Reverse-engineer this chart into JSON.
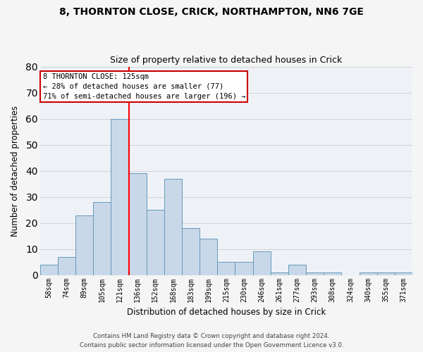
{
  "title1": "8, THORNTON CLOSE, CRICK, NORTHAMPTON, NN6 7GE",
  "title2": "Size of property relative to detached houses in Crick",
  "xlabel": "Distribution of detached houses by size in Crick",
  "ylabel": "Number of detached properties",
  "footer1": "Contains HM Land Registry data © Crown copyright and database right 2024.",
  "footer2": "Contains public sector information licensed under the Open Government Licence v3.0.",
  "categories": [
    "58sqm",
    "74sqm",
    "89sqm",
    "105sqm",
    "121sqm",
    "136sqm",
    "152sqm",
    "168sqm",
    "183sqm",
    "199sqm",
    "215sqm",
    "230sqm",
    "246sqm",
    "261sqm",
    "277sqm",
    "293sqm",
    "308sqm",
    "324sqm",
    "340sqm",
    "355sqm",
    "371sqm"
  ],
  "values": [
    4,
    7,
    23,
    28,
    60,
    39,
    25,
    37,
    18,
    14,
    5,
    5,
    9,
    1,
    4,
    1,
    1,
    0,
    1,
    1,
    1
  ],
  "bar_color": "#c8d8e8",
  "bar_edge_color": "#6699bb",
  "red_line_bar_index": 4,
  "annotation_text1": "8 THORNTON CLOSE: 125sqm",
  "annotation_text2": "← 28% of detached houses are smaller (77)",
  "annotation_text3": "71% of semi-detached houses are larger (196) →",
  "ylim": [
    0,
    80
  ],
  "yticks": [
    0,
    10,
    20,
    30,
    40,
    50,
    60,
    70,
    80
  ],
  "grid_color": "#cccccc",
  "annotation_box_facecolor": "#ffffff",
  "annotation_box_edgecolor": "#cc0000",
  "bg_color": "#eef2f7"
}
